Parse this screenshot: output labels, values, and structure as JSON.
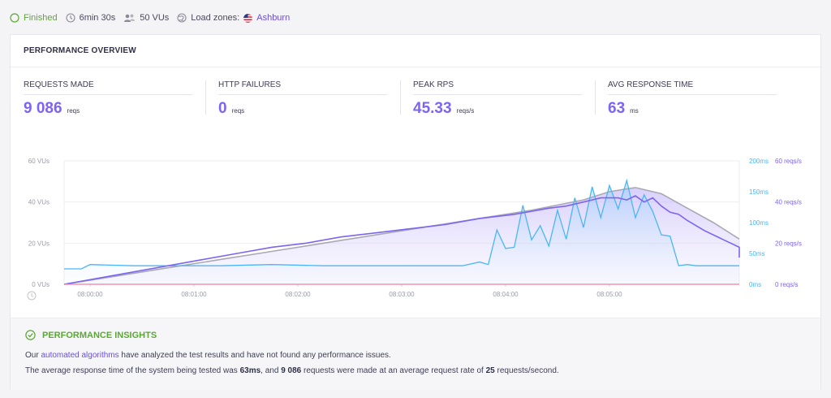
{
  "status": {
    "state": "Finished",
    "duration": "6min 30s",
    "vus": "50 VUs",
    "load_zones_label": "Load zones:",
    "load_zone": "Ashburn"
  },
  "overview": {
    "title": "PERFORMANCE OVERVIEW",
    "metrics": [
      {
        "label": "REQUESTS MADE",
        "value": "9 086",
        "unit": "reqs"
      },
      {
        "label": "HTTP FAILURES",
        "value": "0",
        "unit": "reqs"
      },
      {
        "label": "PEAK RPS",
        "value": "45.33",
        "unit": "reqs/s"
      },
      {
        "label": "AVG RESPONSE TIME",
        "value": "63",
        "unit": "ms"
      }
    ]
  },
  "insights": {
    "title": "PERFORMANCE INSIGHTS",
    "line1_pre": "Our ",
    "line1_link": "automated algorithms",
    "line1_post": " have analyzed the test results and have not found any performance issues.",
    "line2_a": "The average response time of the system being tested was ",
    "line2_b": "63ms",
    "line2_c": ", and ",
    "line2_d": "9 086",
    "line2_e": " requests were made at an average request rate of ",
    "line2_f": "25",
    "line2_g": " requests/second."
  },
  "colors": {
    "accent": "#7d64f2",
    "vus": "#a9a9b4",
    "rps": "#7d64f2",
    "response": "#4ab6f5",
    "failures": "#f27e9c",
    "success": "#5aa832"
  },
  "chart_data": {
    "type": "line",
    "x_ticks": [
      "08:00:00",
      "08:01:00",
      "08:02:00",
      "08:03:00",
      "08:04:00",
      "08:05:00"
    ],
    "xlim_seconds": [
      0,
      390
    ],
    "left_axis": {
      "ticks": [
        "0 VUs",
        "20 VUs",
        "40 VUs",
        "60 VUs"
      ],
      "ylim": [
        0,
        60
      ]
    },
    "right_axis_ms": {
      "ticks": [
        "0ms",
        "50ms",
        "100ms",
        "150ms",
        "200ms"
      ],
      "ylim": [
        0,
        200
      ]
    },
    "right_axis_rps": {
      "ticks": [
        "0 reqs/s",
        "20 reqs/s",
        "40 reqs/s",
        "60 reqs/s"
      ],
      "ylim": [
        0,
        60
      ]
    },
    "series": [
      {
        "name": "VUs",
        "axis": "left",
        "x": [
          0,
          30,
          60,
          90,
          120,
          150,
          180,
          210,
          240,
          270,
          300,
          315,
          330,
          345,
          360,
          375,
          390
        ],
        "values": [
          0,
          4,
          8,
          12,
          16,
          20,
          24,
          28,
          32,
          36,
          41,
          45,
          47,
          44,
          37,
          30,
          22
        ]
      },
      {
        "name": "reqs/s",
        "axis": "rps",
        "x": [
          0,
          20,
          40,
          60,
          80,
          100,
          120,
          140,
          160,
          180,
          200,
          220,
          240,
          260,
          280,
          290,
          300,
          310,
          315,
          320,
          325,
          330,
          335,
          340,
          345,
          350,
          355,
          360,
          370,
          380,
          390,
          392
        ],
        "values": [
          0,
          3,
          6,
          9,
          12,
          15,
          18,
          20,
          23,
          25,
          27,
          29,
          32,
          34,
          37,
          38,
          40,
          42,
          42,
          42,
          41,
          43,
          40,
          42,
          38,
          35,
          34,
          31,
          26,
          22,
          18,
          13
        ]
      },
      {
        "name": "http_req_duration",
        "axis": "ms",
        "x": [
          0,
          10,
          15,
          40,
          60,
          90,
          120,
          150,
          180,
          210,
          230,
          240,
          245,
          250,
          255,
          260,
          265,
          270,
          275,
          280,
          285,
          290,
          295,
          300,
          305,
          310,
          315,
          320,
          325,
          330,
          335,
          340,
          345,
          350,
          355,
          360,
          365,
          370,
          375,
          390
        ],
        "values": [
          25,
          25,
          32,
          30,
          30,
          30,
          32,
          30,
          30,
          30,
          30,
          36,
          32,
          88,
          58,
          60,
          128,
          72,
          95,
          62,
          120,
          73,
          140,
          92,
          158,
          108,
          160,
          122,
          168,
          108,
          145,
          118,
          80,
          78,
          30,
          32,
          30,
          30,
          30,
          30
        ]
      },
      {
        "name": "http_req_failed",
        "axis": "rps",
        "x": [
          0,
          392
        ],
        "values": [
          0,
          0
        ]
      }
    ]
  }
}
